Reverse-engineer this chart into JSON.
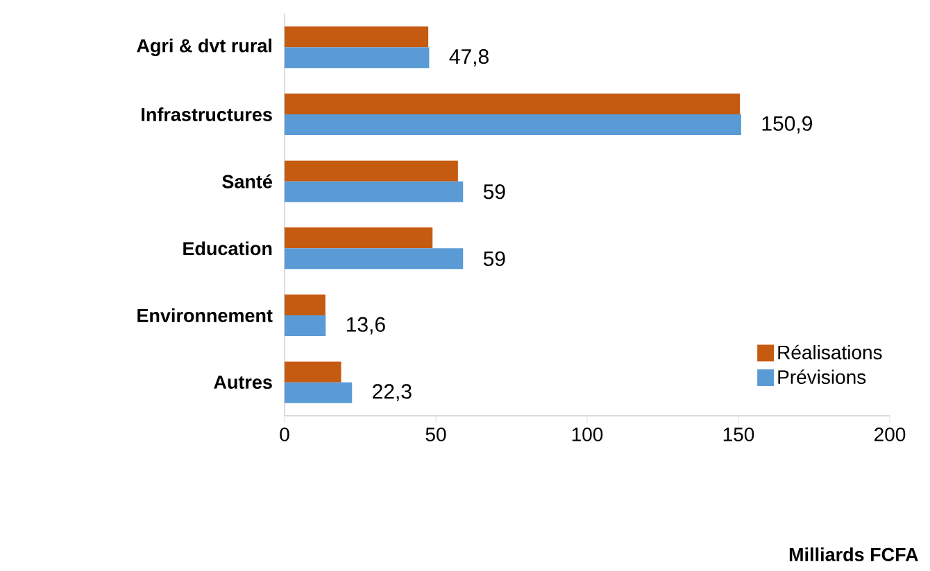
{
  "chart_data": {
    "type": "bar",
    "orientation": "horizontal",
    "annotations": [
      "Milliards FCFA"
    ],
    "categories": [
      "Agri & dvt rural",
      "Infrastructures",
      "Santé",
      "Education",
      "Environnement",
      "Autres"
    ],
    "series": [
      {
        "name": "Réalisations",
        "color": "#c55a11",
        "values": [
          47.5,
          150.5,
          57.3,
          48.9,
          13.5,
          18.7
        ]
      },
      {
        "name": "Prévisions",
        "color": "#5b9bd5",
        "values": [
          47.8,
          150.9,
          59,
          59,
          13.6,
          22.3
        ],
        "value_labels": [
          "47,8",
          "150,9",
          "59",
          "59",
          "13,6",
          "22,3"
        ]
      }
    ],
    "xlim": [
      0,
      200
    ],
    "xticks": [
      0,
      50,
      100,
      150,
      200
    ],
    "legend": "bottom right"
  }
}
